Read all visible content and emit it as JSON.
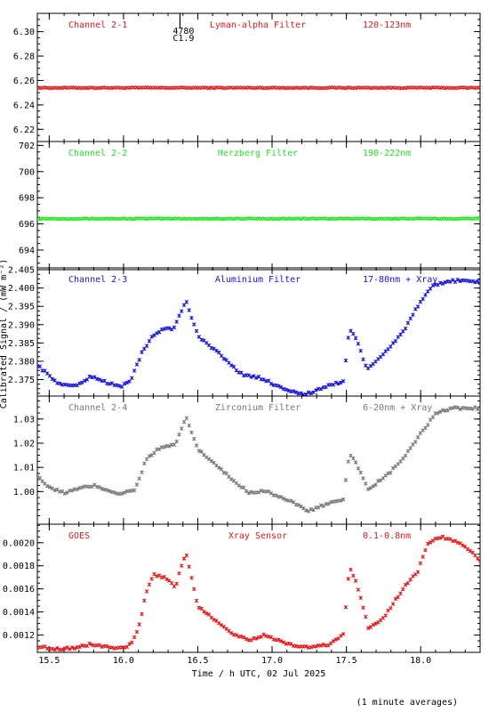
{
  "figure": {
    "xlabel": "Time / h UTC, 02 Jul 2025",
    "ylabel": "Calibrated Signal / (mW m⁻²)",
    "footnote": "(1 minute averages)",
    "flare_marker": {
      "x": 16.38,
      "labels": [
        "4780",
        "C1.9"
      ]
    }
  },
  "chart_data": [
    {
      "type": "scatter",
      "title": "",
      "channel": "Channel 2-1",
      "filter": "Lyman-alpha Filter",
      "band": "120-123nm",
      "color": "#e8161a",
      "xlim": [
        15.42,
        18.4
      ],
      "ylim": [
        6.21,
        6.315
      ],
      "yticks": [
        6.22,
        6.24,
        6.26,
        6.28,
        6.3
      ],
      "yticklabels": [
        "6.22",
        "6.24",
        "6.26",
        "6.28",
        "6.30"
      ],
      "mode": "flat",
      "flat_value": 6.254,
      "keypoints": []
    },
    {
      "type": "scatter",
      "title": "",
      "channel": "Channel 2-2",
      "filter": "Herzberg Filter",
      "band": "190-222nm",
      "color": "#22e622",
      "xlim": [
        15.42,
        18.4
      ],
      "ylim": [
        692.5,
        702.3
      ],
      "yticks": [
        694,
        696,
        698,
        700,
        702
      ],
      "yticklabels": [
        "694",
        "696",
        "698",
        "700",
        "702"
      ],
      "mode": "flat",
      "flat_value": 696.4,
      "keypoints": []
    },
    {
      "type": "scatter",
      "title": "",
      "channel": "Channel 2-3",
      "filter": "Aluminium Filter",
      "band": "17-80nm + Xray",
      "color": "#1212dd",
      "xlim": [
        15.42,
        18.4
      ],
      "ylim": [
        2.3705,
        2.4055
      ],
      "yticks": [
        2.375,
        2.38,
        2.385,
        2.39,
        2.395,
        2.4,
        2.405
      ],
      "yticklabels": [
        "2.375",
        "2.380",
        "2.385",
        "2.390",
        "2.395",
        "2.400",
        "2.405"
      ],
      "mode": "curve",
      "keypoints": [
        [
          15.42,
          2.379
        ],
        [
          15.5,
          2.376
        ],
        [
          15.58,
          2.3735
        ],
        [
          15.7,
          2.3735
        ],
        [
          15.78,
          2.376
        ],
        [
          15.9,
          2.374
        ],
        [
          15.98,
          2.373
        ],
        [
          16.05,
          2.375
        ],
        [
          16.12,
          2.382
        ],
        [
          16.2,
          2.387
        ],
        [
          16.27,
          2.389
        ],
        [
          16.34,
          2.389
        ],
        [
          16.42,
          2.3965
        ],
        [
          16.5,
          2.387
        ],
        [
          16.62,
          2.383
        ],
        [
          16.75,
          2.378
        ],
        [
          16.82,
          2.376
        ],
        [
          16.92,
          2.3755
        ],
        [
          17.05,
          2.373
        ],
        [
          17.2,
          2.371
        ],
        [
          17.28,
          2.3715
        ],
        [
          17.35,
          2.373
        ],
        [
          17.48,
          2.3745
        ],
        [
          17.52,
          2.389
        ],
        [
          17.57,
          2.386
        ],
        [
          17.64,
          2.3775
        ],
        [
          17.75,
          2.382
        ],
        [
          17.88,
          2.388
        ],
        [
          17.98,
          2.395
        ],
        [
          18.08,
          2.4005
        ],
        [
          18.2,
          2.402
        ],
        [
          18.3,
          2.402
        ],
        [
          18.4,
          2.4015
        ]
      ]
    },
    {
      "type": "scatter",
      "title": "",
      "channel": "Channel 2-4",
      "filter": "Zirconium Filter",
      "band": "6-20nm + Xray",
      "color": "#777777",
      "xlim": [
        15.42,
        18.4
      ],
      "ylim": [
        0.9865,
        1.0395
      ],
      "yticks": [
        1.0,
        1.01,
        1.02,
        1.03
      ],
      "yticklabels": [
        "1.00",
        "1.01",
        "1.02",
        "1.03"
      ],
      "mode": "curve",
      "keypoints": [
        [
          15.42,
          1.0065
        ],
        [
          15.5,
          1.0015
        ],
        [
          15.6,
          0.9995
        ],
        [
          15.72,
          1.0015
        ],
        [
          15.8,
          1.0025
        ],
        [
          15.9,
          1.0005
        ],
        [
          15.98,
          0.999
        ],
        [
          16.08,
          1.001
        ],
        [
          16.15,
          1.013
        ],
        [
          16.22,
          1.017
        ],
        [
          16.3,
          1.019
        ],
        [
          16.35,
          1.019
        ],
        [
          16.42,
          1.031
        ],
        [
          16.5,
          1.0175
        ],
        [
          16.62,
          1.011
        ],
        [
          16.75,
          1.004
        ],
        [
          16.85,
          0.9995
        ],
        [
          16.95,
          1.0005
        ],
        [
          17.1,
          0.9965
        ],
        [
          17.25,
          0.992
        ],
        [
          17.35,
          0.9945
        ],
        [
          17.48,
          0.9965
        ],
        [
          17.52,
          1.016
        ],
        [
          17.57,
          1.011
        ],
        [
          17.65,
          1.001
        ],
        [
          17.78,
          1.007
        ],
        [
          17.9,
          1.015
        ],
        [
          18.0,
          1.024
        ],
        [
          18.1,
          1.032
        ],
        [
          18.2,
          1.0345
        ],
        [
          18.4,
          1.0345
        ]
      ]
    },
    {
      "type": "scatter",
      "title": "",
      "channel": "GOES",
      "filter": "Xray Sensor",
      "band": "0.1-0.8nm",
      "color": "#e8161a",
      "xlim": [
        15.42,
        18.4
      ],
      "ylim": [
        0.00105,
        0.00216
      ],
      "yticks": [
        0.0012,
        0.0014,
        0.0016,
        0.0018,
        0.002
      ],
      "yticklabels": [
        "0.0012",
        "0.0014",
        "0.0016",
        "0.0018",
        "0.0020"
      ],
      "mode": "curve",
      "keypoints": [
        [
          15.42,
          0.0011
        ],
        [
          15.55,
          0.00108
        ],
        [
          15.68,
          0.00109
        ],
        [
          15.78,
          0.00112
        ],
        [
          15.88,
          0.0011
        ],
        [
          15.98,
          0.00108
        ],
        [
          16.05,
          0.00112
        ],
        [
          16.1,
          0.00125
        ],
        [
          16.15,
          0.00155
        ],
        [
          16.2,
          0.00172
        ],
        [
          16.27,
          0.0017
        ],
        [
          16.35,
          0.00162
        ],
        [
          16.42,
          0.00192
        ],
        [
          16.5,
          0.00145
        ],
        [
          16.6,
          0.00135
        ],
        [
          16.75,
          0.0012
        ],
        [
          16.85,
          0.00116
        ],
        [
          16.95,
          0.0012
        ],
        [
          17.1,
          0.00112
        ],
        [
          17.25,
          0.00109
        ],
        [
          17.38,
          0.00112
        ],
        [
          17.48,
          0.0012
        ],
        [
          17.52,
          0.0018
        ],
        [
          17.57,
          0.00165
        ],
        [
          17.65,
          0.00125
        ],
        [
          17.75,
          0.00135
        ],
        [
          17.88,
          0.0016
        ],
        [
          17.98,
          0.00175
        ],
        [
          18.05,
          0.002
        ],
        [
          18.15,
          0.00205
        ],
        [
          18.25,
          0.002
        ],
        [
          18.32,
          0.00195
        ],
        [
          18.4,
          0.00185
        ]
      ]
    }
  ]
}
